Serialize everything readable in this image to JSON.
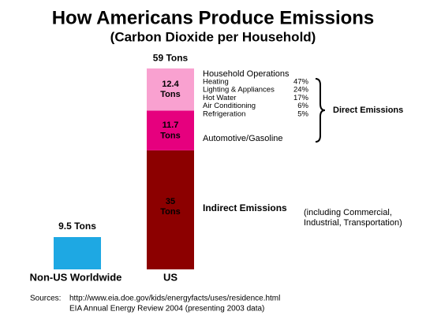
{
  "chart_data": {
    "type": "stacked-bar",
    "title": "How Americans Produce Emissions",
    "subtitle": "(Carbon Dioxide per Household)",
    "categories": [
      "Non-US Worldwide",
      "US"
    ],
    "ylim": [
      0,
      60
    ],
    "series": [
      {
        "color": "#1ea8e3",
        "values": [
          9.5,
          null
        ]
      },
      {
        "name": "Indirect Emissions",
        "color": "#8c0000",
        "values": [
          null,
          35
        ],
        "value_labels": [
          null,
          "35 Tons"
        ]
      },
      {
        "name": "Automotive/Gasoline",
        "color": "#e6007e",
        "values": [
          null,
          11.7
        ],
        "value_labels": [
          null,
          "11.7 Tons"
        ]
      },
      {
        "name": "Household Operations",
        "color": "#f9a1d0",
        "values": [
          null,
          12.4
        ],
        "value_labels": [
          null,
          "12.4 Tons"
        ]
      }
    ],
    "totals": [
      9.5,
      59
    ],
    "total_labels": [
      "9.5 Tons",
      "59 Tons"
    ],
    "breakdown": {
      "items": [
        "Heating",
        "Lighting & Appliances",
        "Hot Water",
        "Air Conditioning",
        "Refrigeration"
      ],
      "values": [
        47,
        24,
        17,
        6,
        5
      ],
      "value_labels": [
        "47%",
        "24%",
        "17%",
        "6%",
        "5%"
      ]
    },
    "bracket_label": "Direct Emissions",
    "note": [
      "(including Commercial,",
      "Industrial, Transportation)"
    ],
    "sources_label": "Sources:",
    "sources": [
      "http://www.eia.doe.gov/kids/energyfacts/uses/residence.html",
      "EIA Annual Energy Review 2004 (presenting 2003 data)"
    ]
  }
}
